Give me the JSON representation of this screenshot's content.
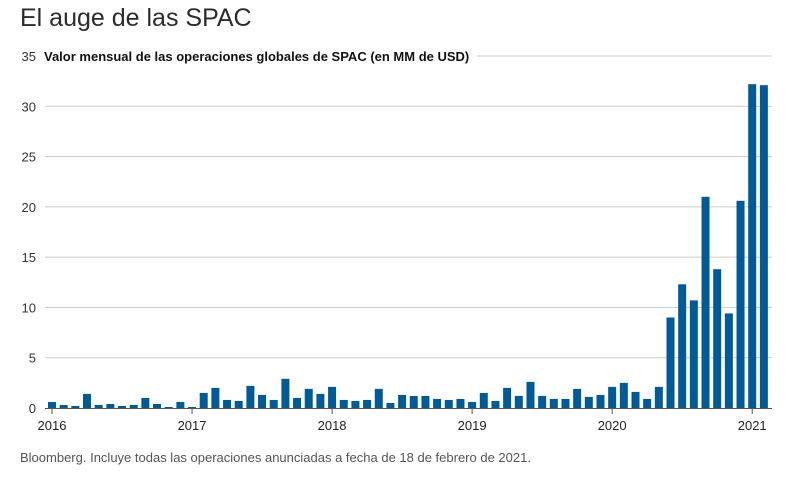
{
  "title": "El auge de las SPAC",
  "source": "Bloomberg. Incluye todas las operaciones anunciadas a fecha de 18 de febrero de 2021.",
  "colors": {
    "bar": "#005a96",
    "grid": "#cccccc",
    "axis": "#555555"
  },
  "chart_data": {
    "type": "bar",
    "title": "Valor mensual de las operaciones globales de SPAC (en MM de USD)",
    "xlabel": "",
    "ylabel": "",
    "ylim": [
      0,
      35
    ],
    "yticks": [
      0,
      5,
      10,
      15,
      20,
      25,
      30,
      35
    ],
    "grid": true,
    "xtick_labels": [
      "2016",
      "2017",
      "2018",
      "2019",
      "2020",
      "2021"
    ],
    "categories": [
      "2016-01",
      "2016-02",
      "2016-03",
      "2016-04",
      "2016-05",
      "2016-06",
      "2016-07",
      "2016-08",
      "2016-09",
      "2016-10",
      "2016-11",
      "2016-12",
      "2017-01",
      "2017-02",
      "2017-03",
      "2017-04",
      "2017-05",
      "2017-06",
      "2017-07",
      "2017-08",
      "2017-09",
      "2017-10",
      "2017-11",
      "2017-12",
      "2018-01",
      "2018-02",
      "2018-03",
      "2018-04",
      "2018-05",
      "2018-06",
      "2018-07",
      "2018-08",
      "2018-09",
      "2018-10",
      "2018-11",
      "2018-12",
      "2019-01",
      "2019-02",
      "2019-03",
      "2019-04",
      "2019-05",
      "2019-06",
      "2019-07",
      "2019-08",
      "2019-09",
      "2019-10",
      "2019-11",
      "2019-12",
      "2020-01",
      "2020-02",
      "2020-03",
      "2020-04",
      "2020-05",
      "2020-06",
      "2020-07",
      "2020-08",
      "2020-09",
      "2020-10",
      "2020-11",
      "2020-12",
      "2021-01",
      "2021-02"
    ],
    "values": [
      0.6,
      0.3,
      0.2,
      1.4,
      0.3,
      0.4,
      0.2,
      0.3,
      1.0,
      0.4,
      0.1,
      0.6,
      0.1,
      1.5,
      2.0,
      0.8,
      0.7,
      2.2,
      1.3,
      0.8,
      2.9,
      1.0,
      1.9,
      1.4,
      2.1,
      0.8,
      0.7,
      0.8,
      1.9,
      0.5,
      1.3,
      1.2,
      1.2,
      0.9,
      0.8,
      0.9,
      0.6,
      1.5,
      0.7,
      2.0,
      1.2,
      2.6,
      1.2,
      0.9,
      0.9,
      1.9,
      1.1,
      1.3,
      2.1,
      2.5,
      1.6,
      0.9,
      2.1,
      9.0,
      12.3,
      10.7,
      21.0,
      13.8,
      9.4,
      20.6,
      32.2,
      32.1
    ]
  }
}
